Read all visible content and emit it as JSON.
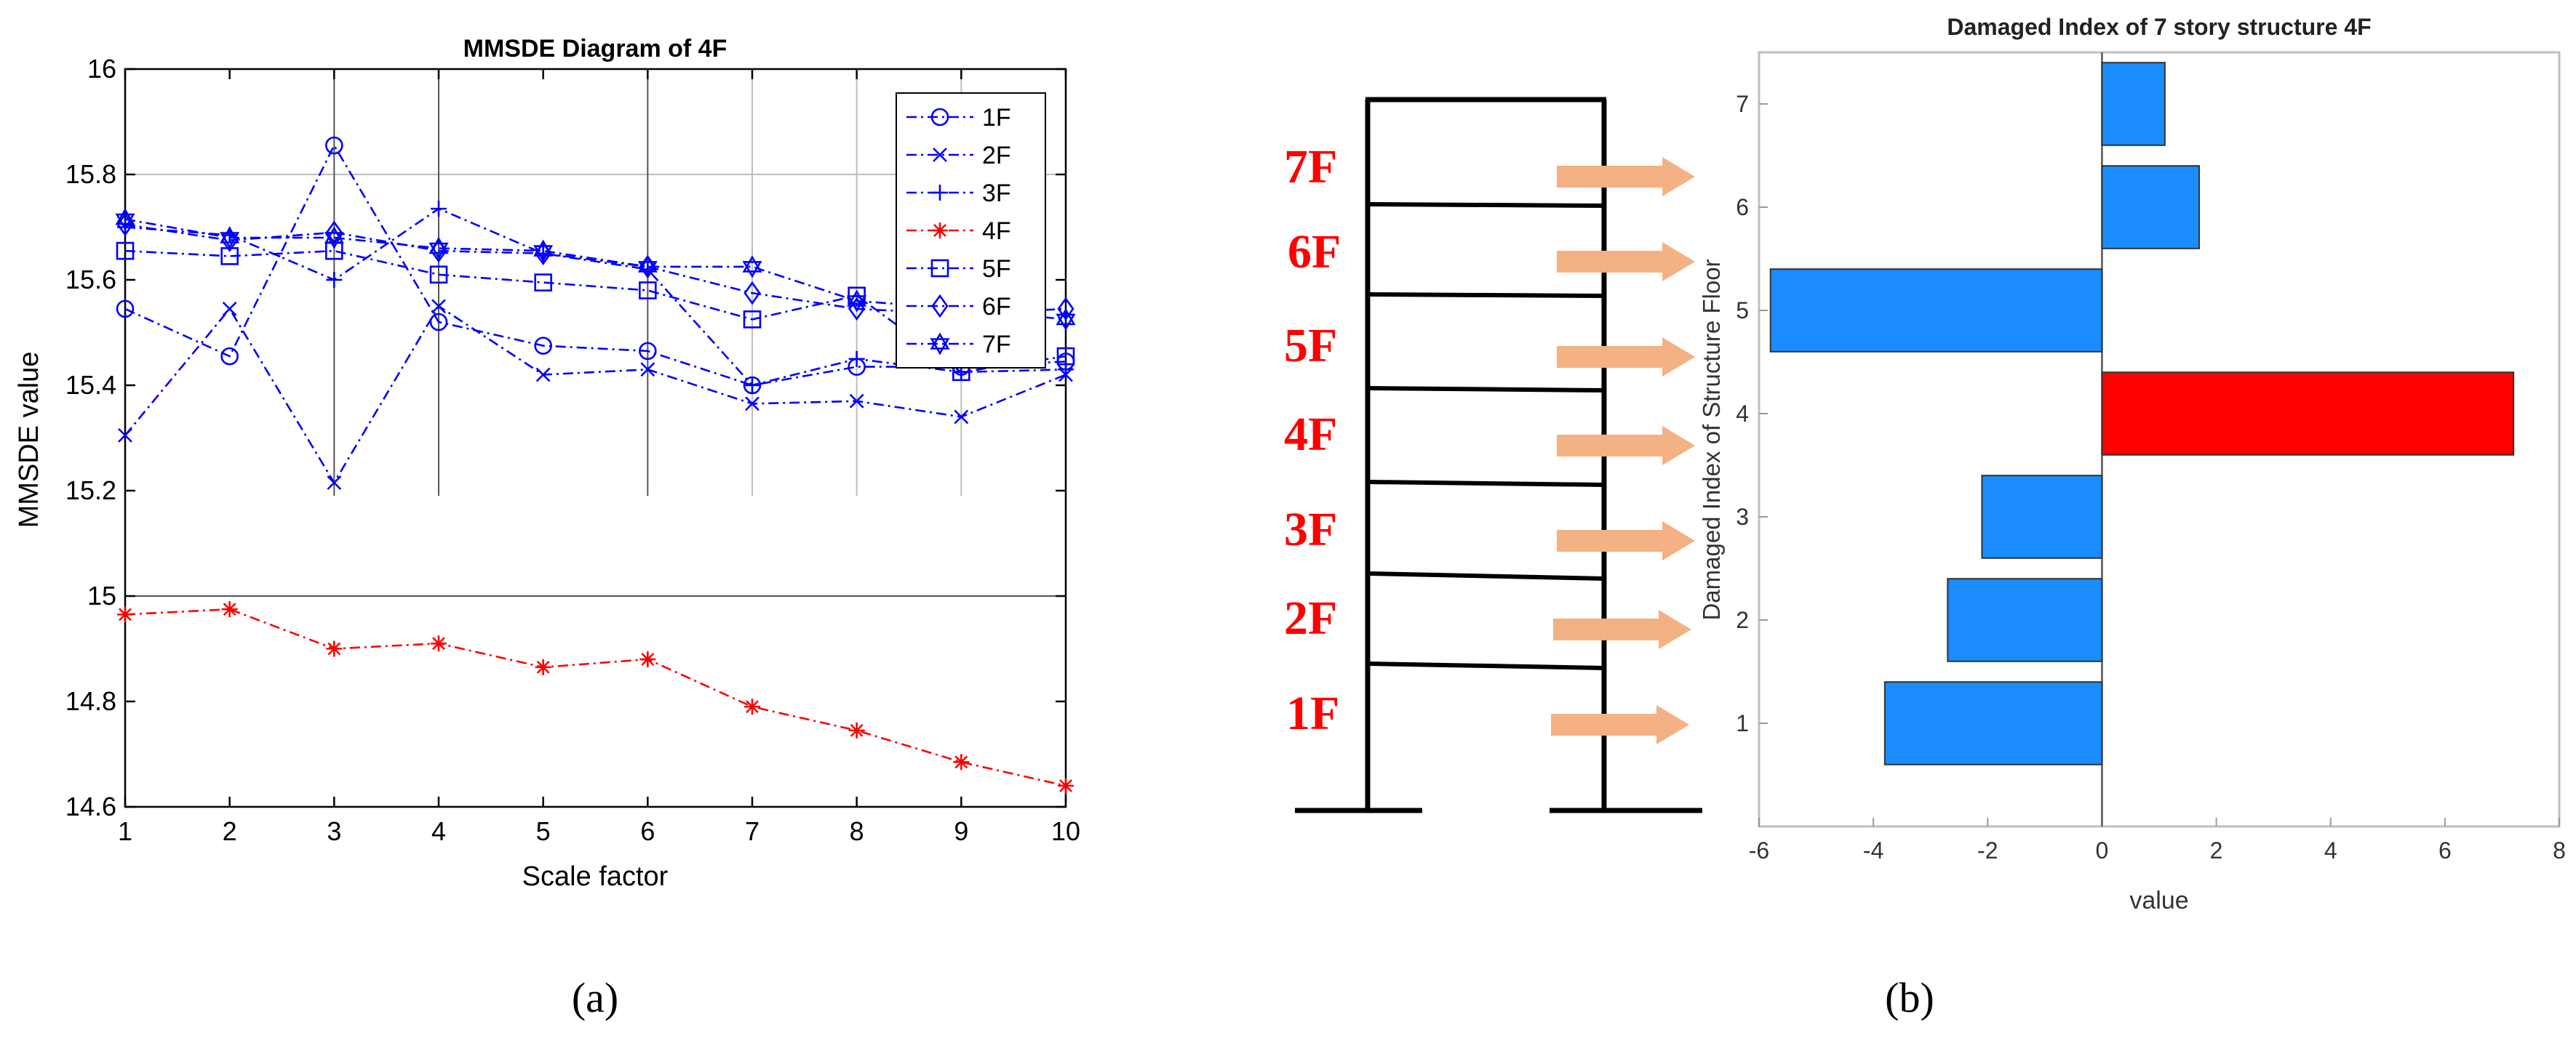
{
  "panels": {
    "a_label": "(a)",
    "b_label": "(b)"
  },
  "chart_data": [
    {
      "type": "line",
      "title": "MMSDE Diagram of 4F",
      "xlabel": "Scale factor",
      "ylabel": "MMSDE value",
      "xlim": [
        1,
        10
      ],
      "ylim": [
        14.6,
        16
      ],
      "xticks": [
        "1",
        "2",
        "3",
        "4",
        "5",
        "6",
        "7",
        "8",
        "9",
        "10"
      ],
      "yticks": [
        "14.6",
        "14.8",
        "15",
        "15.2",
        "15.4",
        "15.6",
        "15.8",
        "16"
      ],
      "grid": "vertical lines at scale factors 3, 4, 6, 7, 8, 9; horizontal line at 15",
      "legend_position": "top-right",
      "x": [
        1,
        2,
        3,
        4,
        5,
        6,
        7,
        8,
        9,
        10
      ],
      "series": [
        {
          "name": "1F",
          "color": "#0000ff",
          "marker": "circle",
          "values": [
            15.545,
            15.455,
            15.855,
            15.52,
            15.475,
            15.465,
            15.4,
            15.435,
            15.435,
            15.445
          ]
        },
        {
          "name": "2F",
          "color": "#0000ff",
          "marker": "x",
          "values": [
            15.305,
            15.545,
            15.215,
            15.55,
            15.42,
            15.43,
            15.365,
            15.37,
            15.34,
            15.42
          ]
        },
        {
          "name": "3F",
          "color": "#0000ff",
          "marker": "plus",
          "values": [
            15.7,
            15.685,
            15.6,
            15.735,
            15.65,
            15.62,
            15.4,
            15.45,
            15.425,
            15.43
          ]
        },
        {
          "name": "4F",
          "color": "#ff0000",
          "marker": "asterisk",
          "values": [
            14.965,
            14.975,
            14.9,
            14.91,
            14.865,
            14.88,
            14.79,
            14.745,
            14.685,
            14.64
          ]
        },
        {
          "name": "5F",
          "color": "#0000ff",
          "marker": "square",
          "values": [
            15.655,
            15.645,
            15.655,
            15.61,
            15.595,
            15.58,
            15.525,
            15.57,
            15.425,
            15.455
          ]
        },
        {
          "name": "6F",
          "color": "#0000ff",
          "marker": "diamond",
          "values": [
            15.705,
            15.675,
            15.69,
            15.655,
            15.65,
            15.625,
            15.575,
            15.545,
            15.535,
            15.545
          ]
        },
        {
          "name": "7F",
          "color": "#0000ff",
          "marker": "hexagram",
          "values": [
            15.715,
            15.68,
            15.68,
            15.66,
            15.655,
            15.625,
            15.625,
            15.56,
            15.545,
            15.525
          ]
        }
      ]
    },
    {
      "type": "bar",
      "orientation": "horizontal",
      "title": "Damaged Index of 7 story structure 4F",
      "xlabel": "value",
      "ylabel": "Damaged Index of Structure Floor",
      "xlim": [
        -6,
        8
      ],
      "ylim": [
        0,
        7.5
      ],
      "xticks": [
        "-6",
        "-4",
        "-2",
        "0",
        "2",
        "4",
        "6",
        "8"
      ],
      "yticks": [
        "1",
        "2",
        "3",
        "4",
        "5",
        "6",
        "7"
      ],
      "categories": [
        "1",
        "2",
        "3",
        "4",
        "5",
        "6",
        "7"
      ],
      "values": [
        -3.8,
        -2.7,
        -2.1,
        7.2,
        -5.8,
        1.7,
        1.1
      ],
      "colors": [
        "#1a8cff",
        "#1a8cff",
        "#1a8cff",
        "#ff0000",
        "#1a8cff",
        "#1a8cff",
        "#1a8cff"
      ]
    }
  ],
  "building": {
    "floor_labels": [
      "1F",
      "2F",
      "3F",
      "4F",
      "5F",
      "6F",
      "7F"
    ],
    "label_color": "#ff0000",
    "arrow_color": "#f4b183",
    "frame_color": "#000000"
  }
}
